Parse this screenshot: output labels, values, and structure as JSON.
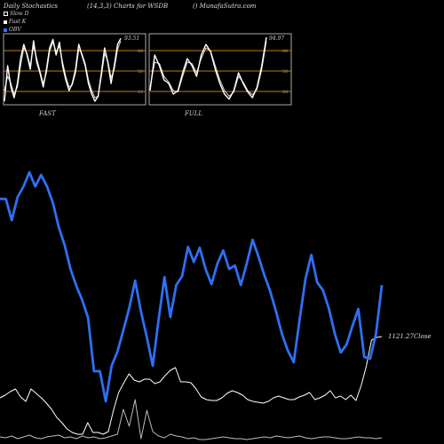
{
  "header": {
    "title": "Daily Stochastics",
    "params": "(14,3,3) Charts for WSDB",
    "site": "() MunafaSutra.com"
  },
  "legend": [
    {
      "label": "Slow D",
      "color": "#ffffff"
    },
    {
      "label": "Fast K",
      "color": "#ffffff"
    },
    {
      "label": "OBV",
      "color": "#2f6ff2"
    }
  ],
  "panels": {
    "fast": {
      "label": "FAST",
      "last_value_label": "93.51",
      "levels": [
        "80",
        "50",
        "20"
      ]
    },
    "full": {
      "label": "FULL",
      "last_value_label": "94.97",
      "levels": [
        "80",
        "50",
        "20"
      ]
    }
  },
  "main": {
    "close_label": "1121.27Close"
  },
  "chart_data": [
    {
      "type": "line",
      "title": "FAST",
      "ylim": [
        0,
        100
      ],
      "reference_lines": [
        80,
        50,
        20
      ],
      "series": [
        {
          "name": "Fast K",
          "values": [
            5,
            55,
            25,
            10,
            30,
            65,
            85,
            70,
            50,
            90,
            60,
            45,
            25,
            50,
            80,
            92,
            70,
            88,
            55,
            35,
            20,
            30,
            50,
            85,
            70,
            55,
            30,
            15,
            5,
            12,
            45,
            80,
            60,
            30,
            55,
            85,
            93.51
          ]
        },
        {
          "name": "Slow D",
          "values": [
            20,
            40,
            30,
            15,
            25,
            55,
            80,
            72,
            55,
            82,
            65,
            48,
            30,
            45,
            75,
            88,
            75,
            82,
            60,
            40,
            25,
            28,
            45,
            78,
            72,
            58,
            35,
            20,
            10,
            12,
            40,
            72,
            62,
            38,
            50,
            78,
            90
          ]
        }
      ]
    },
    {
      "type": "line",
      "title": "FULL",
      "ylim": [
        0,
        100
      ],
      "reference_lines": [
        80,
        50,
        20
      ],
      "series": [
        {
          "name": "Fast K",
          "values": [
            20,
            70,
            55,
            35,
            30,
            15,
            20,
            45,
            65,
            55,
            40,
            70,
            85,
            75,
            50,
            30,
            15,
            8,
            20,
            45,
            30,
            18,
            10,
            25,
            55,
            94.97
          ]
        },
        {
          "name": "Slow D",
          "values": [
            25,
            60,
            58,
            40,
            32,
            20,
            18,
            40,
            60,
            58,
            45,
            65,
            80,
            76,
            55,
            35,
            20,
            12,
            18,
            40,
            32,
            20,
            14,
            22,
            50,
            90
          ]
        }
      ]
    },
    {
      "type": "line",
      "title": "",
      "series": [
        {
          "name": "OBV",
          "values": [
            224,
            224,
            248,
            222,
            210,
            194,
            210,
            197,
            210,
            228,
            256,
            276,
            303,
            322,
            338,
            358,
            418,
            418,
            452,
            412,
            396,
            372,
            347,
            316,
            351,
            380,
            412,
            360,
            312,
            357,
            321,
            311,
            278,
            295,
            279,
            303,
            320,
            297,
            282,
            303,
            299,
            321,
            297,
            270,
            289,
            310,
            328,
            351,
            376,
            395,
            408,
            360,
            314,
            287,
            318,
            327,
            348,
            376,
            397,
            388,
            367,
            348,
            402,
            404,
            376,
            321
          ]
        },
        {
          "name": "Price",
          "values": [
            448,
            445,
            441,
            438,
            447,
            452,
            438,
            443,
            448,
            454,
            461,
            470,
            476,
            483,
            487,
            489,
            489,
            476,
            487,
            487,
            489,
            486,
            462,
            442,
            431,
            421,
            428,
            430,
            427,
            427,
            432,
            430,
            423,
            417,
            414,
            430,
            430,
            431,
            438,
            447,
            450,
            451,
            451,
            448,
            443,
            440,
            442,
            445,
            450,
            452,
            453,
            454,
            452,
            448,
            446,
            448,
            450,
            450,
            447,
            445,
            442,
            450,
            448,
            445,
            440,
            448,
            446,
            450,
            445,
            451,
            434,
            412,
            383,
            380,
            379
          ]
        },
        {
          "name": "Volume",
          "values": [
            492,
            493,
            491,
            494,
            492,
            490,
            493,
            494,
            492,
            491,
            490,
            493,
            492,
            494,
            491,
            493,
            492,
            494,
            493,
            491,
            489,
            461,
            480,
            450,
            494,
            462,
            486,
            491,
            493,
            489,
            491,
            492,
            494,
            493,
            495,
            495,
            494,
            493,
            492,
            493,
            494,
            494,
            495,
            494,
            493,
            492,
            493,
            491,
            492,
            493,
            492,
            491,
            493,
            494,
            493,
            492,
            492,
            493,
            494,
            494,
            493,
            492,
            493,
            493,
            494,
            493
          ]
        }
      ]
    }
  ]
}
